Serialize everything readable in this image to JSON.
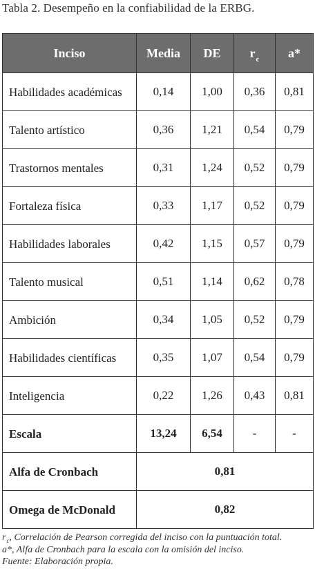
{
  "caption": "Tabla 2. Desempeño en la confiabilidad de la ERBG.",
  "headers": {
    "inciso": "Inciso",
    "media": "Media",
    "de": "DE",
    "rc_base": "r",
    "rc_sub": "c",
    "alpha": "a*"
  },
  "rows": [
    {
      "name": "Habilidades académicas",
      "media": "0,14",
      "de": "1,00",
      "rc": "0,36",
      "alpha": "0,81"
    },
    {
      "name": "Talento artístico",
      "media": "0,36",
      "de": "1,21",
      "rc": "0,54",
      "alpha": "0,79"
    },
    {
      "name": "Trastornos mentales",
      "media": "0,31",
      "de": "1,24",
      "rc": "0,52",
      "alpha": "0,79"
    },
    {
      "name": "Fortaleza física",
      "media": "0,33",
      "de": "1,17",
      "rc": "0,52",
      "alpha": "0,79"
    },
    {
      "name": "Habilidades laborales",
      "media": "0,42",
      "de": "1,15",
      "rc": "0,57",
      "alpha": "0,79"
    },
    {
      "name": "Talento musical",
      "media": "0,51",
      "de": "1,14",
      "rc": "0,62",
      "alpha": "0,78"
    },
    {
      "name": "Ambición",
      "media": "0,34",
      "de": "1,05",
      "rc": "0,52",
      "alpha": "0,79"
    },
    {
      "name": "Habilidades científicas",
      "media": "0,35",
      "de": "1,07",
      "rc": "0,54",
      "alpha": "0,79"
    },
    {
      "name": "Inteligencia",
      "media": "0,22",
      "de": "1,26",
      "rc": "0,43",
      "alpha": "0,81"
    }
  ],
  "escala": {
    "name": "Escala",
    "media": "13,24",
    "de": "6,54",
    "rc": "-",
    "alpha": "-"
  },
  "cronbach": {
    "name": "Alfa de Cronbach",
    "value": "0,81"
  },
  "mcdonald": {
    "name": "Omega de McDonald",
    "value": "0,82"
  },
  "notes": {
    "rc_base": "r",
    "rc_sub": "c",
    "rc_text": ", Correlación de Pearson corregida del inciso con la puntuación total.",
    "alpha": "a*, Alfa de Cronbach para la escala con la omisión del inciso.",
    "source": "Fuente: Elaboración propia."
  }
}
